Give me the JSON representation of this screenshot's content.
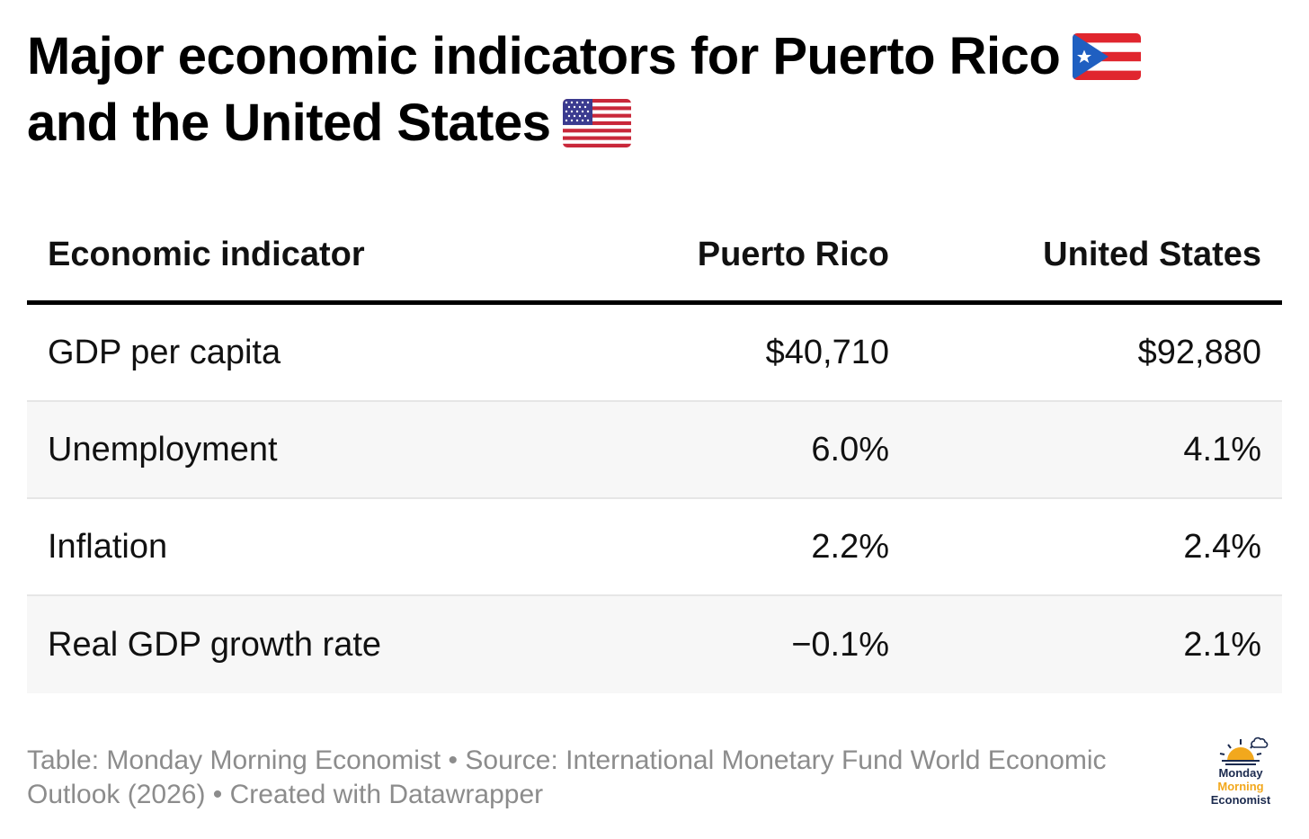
{
  "chart_data": {
    "type": "table",
    "title_line1": "Major economic indicators for Puerto Rico",
    "title_line2": "and the United States",
    "columns": [
      "Economic indicator",
      "Puerto Rico",
      "United States"
    ],
    "rows": [
      {
        "indicator": "GDP per capita",
        "puerto_rico": "$40,710",
        "united_states": "$92,880"
      },
      {
        "indicator": "Unemployment",
        "puerto_rico": "6.0%",
        "united_states": "4.1%"
      },
      {
        "indicator": "Inflation",
        "puerto_rico": "2.2%",
        "united_states": "2.4%"
      },
      {
        "indicator": "Real GDP growth rate",
        "puerto_rico": "−0.1%",
        "united_states": "2.1%"
      }
    ]
  },
  "footer": {
    "line1": "Table: Monday Morning Economist • Source: International Monetary Fund World Economic",
    "line2": "Outlook (2026) • Created with Datawrapper"
  },
  "logo": {
    "line1": "Monday",
    "line2": "Morning",
    "line3": "Economist"
  },
  "colors": {
    "text": "#111111",
    "rule": "#000000",
    "row_divider": "#e6e6e6",
    "row_shade": "#f7f7f7",
    "footer_text": "#8c8c8c",
    "logo_navy": "#1b2a4e",
    "logo_gold": "#f2a81d"
  },
  "icons": {
    "puerto_rico_flag": "puerto-rico-flag-icon",
    "us_flag": "us-flag-icon",
    "logo_sun": "sun-icon"
  }
}
